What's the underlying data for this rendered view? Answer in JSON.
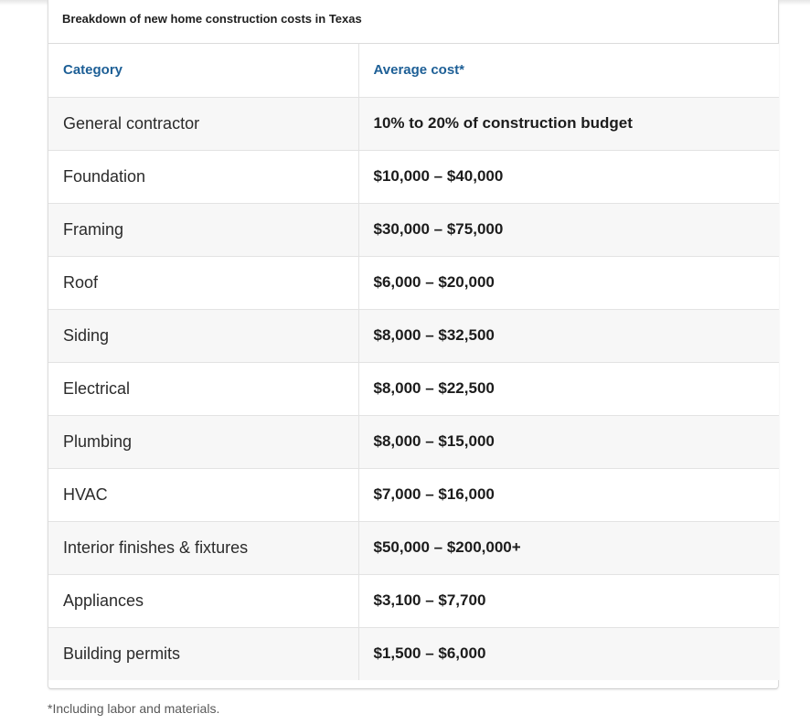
{
  "table": {
    "caption": "Breakdown of new home construction costs in Texas",
    "headers": {
      "category": "Category",
      "cost": "Average cost*"
    },
    "rows": [
      {
        "category": "General contractor",
        "cost": "10% to 20% of construction budget"
      },
      {
        "category": "Foundation",
        "cost": "$10,000 – $40,000"
      },
      {
        "category": "Framing",
        "cost": "$30,000 – $75,000"
      },
      {
        "category": "Roof",
        "cost": "$6,000 – $20,000"
      },
      {
        "category": "Siding",
        "cost": "$8,000 – $32,500"
      },
      {
        "category": "Electrical",
        "cost": "$8,000 – $22,500"
      },
      {
        "category": "Plumbing",
        "cost": "$8,000 – $15,000"
      },
      {
        "category": "HVAC",
        "cost": "$7,000 – $16,000"
      },
      {
        "category": "Interior finishes & fixtures",
        "cost": "$50,000 – $200,000+"
      },
      {
        "category": "Appliances",
        "cost": "$3,100 – $7,700"
      },
      {
        "category": "Building permits",
        "cost": "$1,500 – $6,000"
      }
    ]
  },
  "footnote": "*Including labor and materials.",
  "colors": {
    "header_text": "#1d5f96",
    "row_stripe": "#f7f7f7",
    "border": "#e3e3e3"
  }
}
